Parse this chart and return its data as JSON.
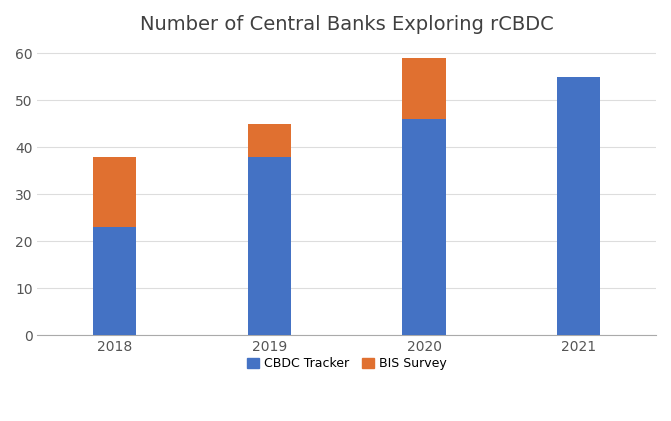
{
  "title": "Number of Central Banks Exploring rCBDC",
  "categories": [
    "2018",
    "2019",
    "2020",
    "2021"
  ],
  "cbdc_tracker": [
    23,
    38,
    46,
    55
  ],
  "bis_survey": [
    15,
    7,
    13,
    0
  ],
  "cbdc_color": "#4472C4",
  "bis_color": "#E07030",
  "background_color": "#FFFFFF",
  "ylim": [
    0,
    62
  ],
  "yticks": [
    0,
    10,
    20,
    30,
    40,
    50,
    60
  ],
  "legend_labels": [
    "CBDC Tracker",
    "BIS Survey"
  ],
  "title_fontsize": 14,
  "tick_fontsize": 10,
  "legend_fontsize": 9,
  "bar_width": 0.28
}
